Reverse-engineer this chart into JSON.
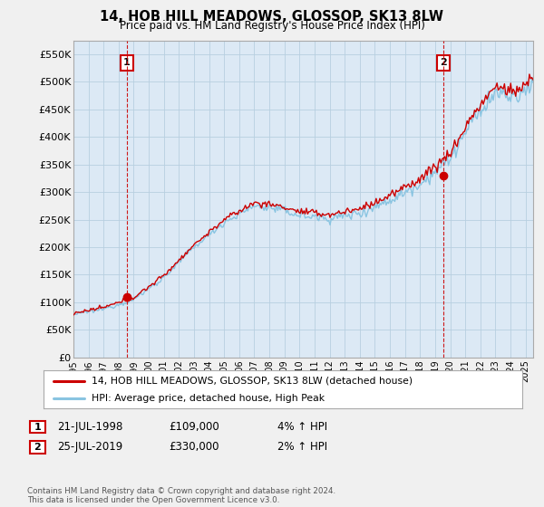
{
  "title": "14, HOB HILL MEADOWS, GLOSSOP, SK13 8LW",
  "subtitle": "Price paid vs. HM Land Registry's House Price Index (HPI)",
  "ylabel_ticks": [
    "£0",
    "£50K",
    "£100K",
    "£150K",
    "£200K",
    "£250K",
    "£300K",
    "£350K",
    "£400K",
    "£450K",
    "£500K",
    "£550K"
  ],
  "ytick_values": [
    0,
    50000,
    100000,
    150000,
    200000,
    250000,
    300000,
    350000,
    400000,
    450000,
    500000,
    550000
  ],
  "ylim": [
    0,
    575000
  ],
  "xlim_start": 1995.0,
  "xlim_end": 2025.5,
  "sale1_year": 1998.55,
  "sale1_price": 109000,
  "sale1_label": "1",
  "sale2_year": 2019.55,
  "sale2_price": 330000,
  "sale2_label": "2",
  "legend_entries": [
    "14, HOB HILL MEADOWS, GLOSSOP, SK13 8LW (detached house)",
    "HPI: Average price, detached house, High Peak"
  ],
  "table_rows": [
    {
      "num": "1",
      "date": "21-JUL-1998",
      "price": "£109,000",
      "hpi": "4% ↑ HPI"
    },
    {
      "num": "2",
      "date": "25-JUL-2019",
      "price": "£330,000",
      "hpi": "2% ↑ HPI"
    }
  ],
  "footer": "Contains HM Land Registry data © Crown copyright and database right 2024.\nThis data is licensed under the Open Government Licence v3.0.",
  "hpi_color": "#89c4e1",
  "price_color": "#cc0000",
  "bg_color": "#f0f0f0",
  "plot_bg_color": "#dce9f5",
  "grid_color": "#b8cfe0"
}
